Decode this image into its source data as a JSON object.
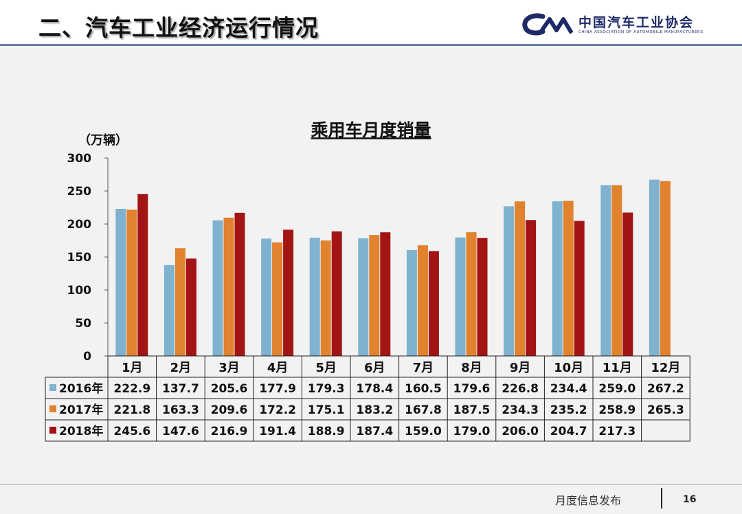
{
  "slide": {
    "title": "二、汽车工业经济运行情况",
    "logo_cn": "中国汽车工业协会",
    "logo_en": "CHINA ASSOCIATION OF AUTOMOBILE MANUFACTURERS",
    "footer_text": "月度信息发布",
    "page_number": "16"
  },
  "chart_data": {
    "type": "bar",
    "title": "乘用车月度销量",
    "ylabel": "（万辆）",
    "ylim": [
      0,
      300
    ],
    "yticks": [
      0,
      50,
      100,
      150,
      200,
      250,
      300
    ],
    "grid": false,
    "legend": "data table below chart",
    "categories": [
      "1月",
      "2月",
      "3月",
      "4月",
      "5月",
      "6月",
      "7月",
      "8月",
      "9月",
      "10月",
      "11月",
      "12月"
    ],
    "series": [
      {
        "name": "2016年",
        "color": "#7fb2cf",
        "values": [
          222.9,
          137.7,
          205.6,
          177.9,
          179.3,
          178.4,
          160.5,
          179.6,
          226.8,
          234.4,
          259.0,
          267.2
        ]
      },
      {
        "name": "2017年",
        "color": "#e0822e",
        "values": [
          221.8,
          163.3,
          209.6,
          172.2,
          175.1,
          183.2,
          167.8,
          187.5,
          234.3,
          235.2,
          258.9,
          265.3
        ]
      },
      {
        "name": "2018年",
        "color": "#a31414",
        "values": [
          245.6,
          147.6,
          216.9,
          191.4,
          188.9,
          187.4,
          159.0,
          179.0,
          206.0,
          204.7,
          217.3,
          null
        ]
      }
    ]
  }
}
